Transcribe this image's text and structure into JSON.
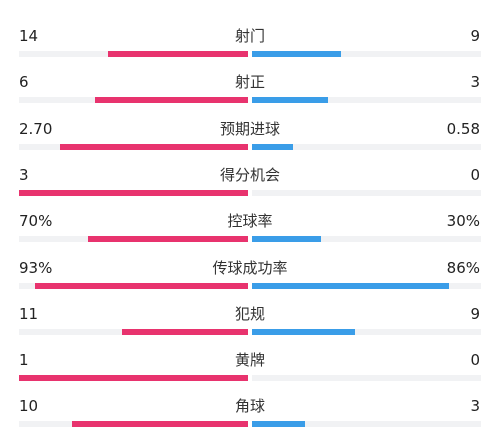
{
  "colors": {
    "home": "#e8336e",
    "away": "#3a9de8",
    "track": "#f1f2f4"
  },
  "stats": [
    {
      "label": "射门",
      "home": "14",
      "away": "9",
      "home_fill": 0.61,
      "away_fill": 0.39
    },
    {
      "label": "射正",
      "home": "6",
      "away": "3",
      "home_fill": 0.67,
      "away_fill": 0.33
    },
    {
      "label": "预期进球",
      "home": "2.70",
      "away": "0.58",
      "home_fill": 0.82,
      "away_fill": 0.18
    },
    {
      "label": "得分机会",
      "home": "3",
      "away": "0",
      "home_fill": 1.0,
      "away_fill": 0.0
    },
    {
      "label": "控球率",
      "home": "70%",
      "away": "30%",
      "home_fill": 0.7,
      "away_fill": 0.3
    },
    {
      "label": "传球成功率",
      "home": "93%",
      "away": "86%",
      "home_fill": 0.93,
      "away_fill": 0.86
    },
    {
      "label": "犯规",
      "home": "11",
      "away": "9",
      "home_fill": 0.55,
      "away_fill": 0.45
    },
    {
      "label": "黄牌",
      "home": "1",
      "away": "0",
      "home_fill": 1.0,
      "away_fill": 0.0
    },
    {
      "label": "角球",
      "home": "10",
      "away": "3",
      "home_fill": 0.77,
      "away_fill": 0.23
    }
  ]
}
